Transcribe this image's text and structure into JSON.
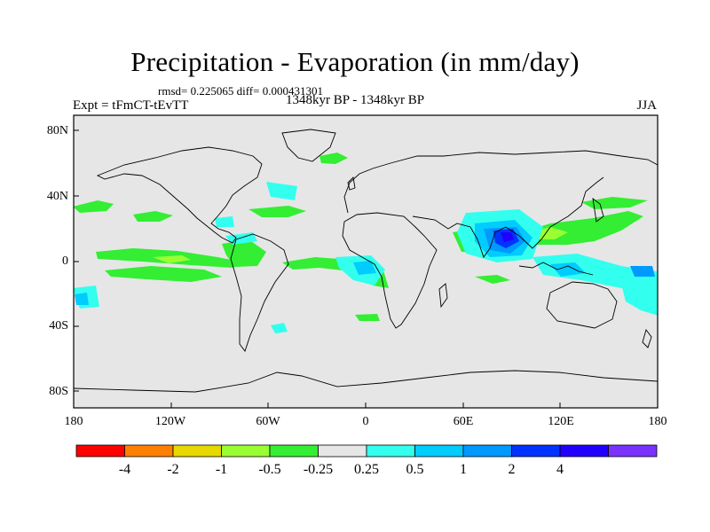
{
  "title": "Precipitation - Evaporation (in mm/day)",
  "stats": "rmsd= 0.225065  diff= 0.000431301",
  "subtitle_left": "Expt = tFmCT-tEvTT",
  "subtitle_center": "1348kyr BP - 1348kyr BP",
  "subtitle_right": "JJA",
  "lat_labels": [
    "80N",
    "40N",
    "0",
    "40S",
    "80S"
  ],
  "lon_labels": [
    "180",
    "120W",
    "60W",
    "0",
    "60E",
    "120E",
    "180"
  ],
  "colorbar": {
    "colors": [
      "#ff0000",
      "#ff8000",
      "#e6d800",
      "#99ff33",
      "#33ee33",
      "#e6e6e6",
      "#33ffee",
      "#00ccff",
      "#0099ff",
      "#0033ff",
      "#2200ff",
      "#7a33ff"
    ],
    "labels": [
      "-4",
      "-2",
      "-1",
      "-0.5",
      "-0.25",
      "0.25",
      "0.5",
      "1",
      "2",
      "4"
    ]
  }
}
